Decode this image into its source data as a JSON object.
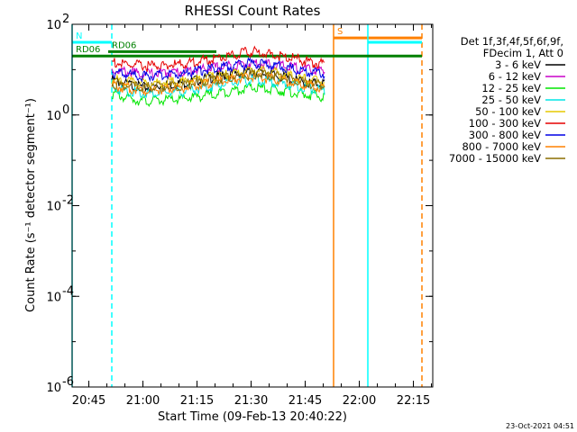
{
  "chart_data": {
    "type": "line",
    "title": "RHESSI Count Rates",
    "xlabel": "Start Time (09-Feb-13 20:40:22)",
    "ylabel": "Count Rate (s⁻¹ detector segment⁻¹)",
    "yscale": "log",
    "x_ticks": [
      "20:45",
      "21:00",
      "21:15",
      "21:30",
      "21:45",
      "22:00",
      "22:15"
    ],
    "y_ticks": [
      {
        "base": "10",
        "exp": "2"
      },
      {
        "base": "10",
        "exp": "0"
      },
      {
        "base": "10",
        "exp": "-2"
      },
      {
        "base": "10",
        "exp": "-4"
      },
      {
        "base": "10",
        "exp": "-6"
      }
    ],
    "x_range_minutes_after_start": [
      0,
      100
    ],
    "ylim": [
      1e-06,
      100
    ],
    "legend": {
      "placement": "right",
      "header": [
        "Det 1f,3f,4f,5f,6f,9f,",
        "FDecim 1, Att 0"
      ],
      "entries": [
        {
          "label": "3 - 6 keV",
          "color": "#000000"
        },
        {
          "label": "6 - 12 keV",
          "color": "#c800c8"
        },
        {
          "label": "12 - 25 keV",
          "color": "#00e600"
        },
        {
          "label": "25 - 50 keV",
          "color": "#00e6e6"
        },
        {
          "label": "50 - 100 keV",
          "color": "#e6c800"
        },
        {
          "label": "100 - 300 keV",
          "color": "#e60000"
        },
        {
          "label": "300 - 800 keV",
          "color": "#0000e6"
        },
        {
          "label": "800 - 7000 keV",
          "color": "#ff8000"
        },
        {
          "label": "7000 - 15000 keV",
          "color": "#8c6e00"
        }
      ]
    },
    "series": [
      {
        "name": "3 - 6 keV",
        "color": "#000000",
        "x": [
          11,
          14,
          20,
          30,
          40,
          50,
          58,
          65,
          70
        ],
        "y": [
          6,
          5,
          4,
          5,
          7,
          9,
          7,
          5,
          5
        ]
      },
      {
        "name": "6 - 12 keV",
        "color": "#c800c8",
        "x": [
          11,
          14,
          20,
          30,
          40,
          50,
          58,
          65,
          70
        ],
        "y": [
          10,
          9,
          8,
          9,
          11,
          14,
          12,
          10,
          9
        ]
      },
      {
        "name": "12 - 25 keV",
        "color": "#00e600",
        "x": [
          11,
          14,
          20,
          30,
          40,
          50,
          58,
          65,
          70
        ],
        "y": [
          3,
          2.5,
          2,
          2.2,
          3,
          4,
          3.5,
          2.8,
          2.5
        ]
      },
      {
        "name": "25 - 50 keV",
        "color": "#00e6e6",
        "x": [
          11,
          14,
          20,
          30,
          40,
          50,
          58,
          65,
          70
        ],
        "y": [
          4,
          3.5,
          3,
          3.2,
          4.5,
          6,
          5,
          4,
          3.5
        ]
      },
      {
        "name": "50 - 100 keV",
        "color": "#e6c800",
        "x": [
          11,
          14,
          20,
          30,
          40,
          50,
          58,
          65,
          70
        ],
        "y": [
          6,
          5.5,
          5,
          5.5,
          7,
          10,
          8,
          6,
          5.5
        ]
      },
      {
        "name": "100 - 300 keV",
        "color": "#e60000",
        "x": [
          11,
          14,
          20,
          30,
          40,
          50,
          58,
          65,
          70
        ],
        "y": [
          15,
          13,
          12,
          13,
          18,
          25,
          20,
          15,
          13
        ]
      },
      {
        "name": "300 - 800 keV",
        "color": "#0000e6",
        "x": [
          11,
          14,
          20,
          30,
          40,
          50,
          58,
          65,
          70
        ],
        "y": [
          9,
          8,
          7,
          8,
          11,
          14,
          12,
          9,
          8
        ]
      },
      {
        "name": "800 - 7000 keV",
        "color": "#ff8000",
        "x": [
          11,
          14,
          20,
          30,
          40,
          50,
          58,
          65,
          70
        ],
        "y": [
          4.5,
          4,
          3.5,
          4,
          5.5,
          7,
          6,
          4.5,
          4
        ]
      },
      {
        "name": "7000 - 15000 keV",
        "color": "#8c6e00",
        "x": [
          11,
          14,
          20,
          30,
          40,
          50,
          58,
          65,
          70
        ],
        "y": [
          5,
          4.5,
          4,
          4.5,
          6,
          8,
          7,
          5,
          4.5
        ]
      }
    ],
    "flags": [
      {
        "label": "N",
        "color": "#00ffff",
        "x_start": 0,
        "x_end": 11,
        "y_value": 40,
        "edges": [
          0,
          11
        ],
        "edge_style": [
          "solid",
          "dashed"
        ]
      },
      {
        "label": "S",
        "color": "#ff8000",
        "x_start": 72.5,
        "x_end": 97,
        "y_value": 50,
        "edges": [
          72.5,
          97
        ],
        "edge_style": [
          "solid",
          "dashed"
        ]
      },
      {
        "label": "",
        "color": "#00ffff",
        "x_start": 82,
        "x_end": 97,
        "y_value": 40,
        "edges": [
          82
        ],
        "edge_style": [
          "solid"
        ]
      },
      {
        "label": "RD06",
        "color": "#008000",
        "x_start": 0,
        "x_end": 97,
        "y_value": 20
      },
      {
        "label": "RD06",
        "color": "#008000",
        "x_start": 10,
        "x_end": 40,
        "y_value": 25
      }
    ],
    "annotations": [
      "N",
      "S",
      "RD06",
      "RD06"
    ],
    "date_stamp": "23-Oct-2021 04:51"
  }
}
